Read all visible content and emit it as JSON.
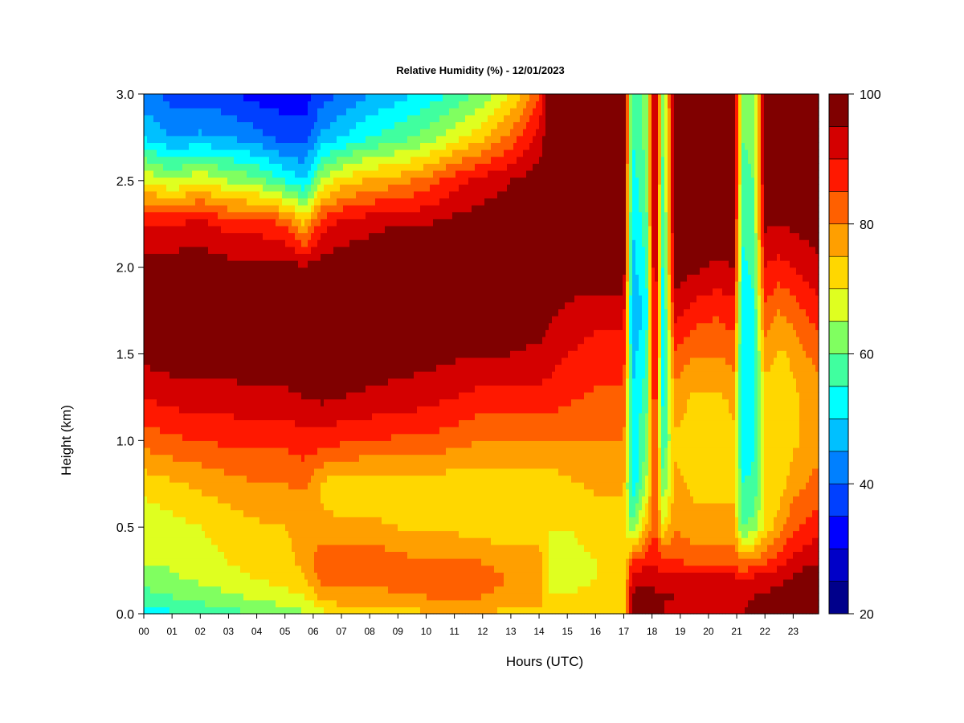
{
  "chart_data": {
    "type": "heatmap",
    "title": "Relative Humidity (%) - 12/01/2023",
    "xlabel": "Hours (UTC)",
    "ylabel": "Height (km)",
    "x_ticks": [
      "00",
      "01",
      "02",
      "03",
      "04",
      "05",
      "06",
      "07",
      "08",
      "09",
      "10",
      "11",
      "12",
      "13",
      "14",
      "15",
      "16",
      "17",
      "18",
      "19",
      "20",
      "21",
      "22",
      "23"
    ],
    "xlim": [
      0,
      23.9
    ],
    "y_ticks": [
      "0.0",
      "0.5",
      "1.0",
      "1.5",
      "2.0",
      "2.5",
      "3.0"
    ],
    "ylim": [
      0,
      3.0
    ],
    "colorbar": {
      "ticks": [
        "20",
        "40",
        "60",
        "80",
        "100"
      ],
      "range": [
        20,
        100
      ],
      "levels": [
        20,
        25,
        30,
        35,
        40,
        45,
        50,
        55,
        60,
        65,
        70,
        75,
        80,
        85,
        90,
        95,
        100
      ],
      "colors": [
        "#00008b",
        "#0000c8",
        "#0000ff",
        "#0040ff",
        "#0080ff",
        "#00c0ff",
        "#00ffff",
        "#40ff9f",
        "#80ff60",
        "#dfff20",
        "#ffd700",
        "#ff9f00",
        "#ff6000",
        "#ff1800",
        "#d40000",
        "#800000"
      ]
    },
    "profiles_height_km": [
      0.0,
      0.1,
      0.2,
      0.3,
      0.5,
      0.75,
      1.0,
      1.25,
      1.5,
      1.75,
      2.0,
      2.25,
      2.5,
      2.75,
      3.0
    ],
    "profiles": [
      {
        "hour": 0.0,
        "rh": [
          52,
          58,
          62,
          65,
          66,
          72,
          82,
          90,
          97,
          99,
          98,
          90,
          70,
          50,
          42
        ]
      },
      {
        "hour": 1.0,
        "rh": [
          54,
          60,
          64,
          66,
          68,
          74,
          84,
          92,
          98,
          99,
          98,
          90,
          65,
          45,
          38
        ]
      },
      {
        "hour": 2.0,
        "rh": [
          56,
          62,
          66,
          68,
          70,
          76,
          85,
          93,
          98,
          99,
          98,
          92,
          70,
          46,
          38
        ]
      },
      {
        "hour": 3.0,
        "rh": [
          58,
          64,
          68,
          70,
          72,
          78,
          86,
          93,
          98,
          99,
          97,
          88,
          65,
          45,
          36
        ]
      },
      {
        "hour": 4.0,
        "rh": [
          60,
          66,
          70,
          72,
          74,
          80,
          86,
          94,
          98,
          99,
          97,
          88,
          62,
          42,
          33
        ]
      },
      {
        "hour": 5.0,
        "rh": [
          62,
          68,
          72,
          74,
          75,
          80,
          86,
          94,
          98,
          99,
          97,
          85,
          55,
          38,
          32
        ]
      },
      {
        "hour": 5.7,
        "rh": [
          64,
          70,
          74,
          76,
          76,
          81,
          88,
          95,
          98,
          99,
          96,
          75,
          50,
          38,
          32
        ]
      },
      {
        "hour": 6.3,
        "rh": [
          68,
          76,
          82,
          84,
          76,
          74,
          88,
          96,
          99,
          99,
          98,
          88,
          66,
          46,
          38
        ]
      },
      {
        "hour": 7.0,
        "rh": [
          72,
          78,
          82,
          84,
          76,
          72,
          86,
          95,
          99,
          99,
          98,
          92,
          72,
          50,
          40
        ]
      },
      {
        "hour": 8.0,
        "rh": [
          72,
          78,
          82,
          84,
          76,
          72,
          85,
          94,
          98,
          99,
          98,
          94,
          76,
          55,
          45
        ]
      },
      {
        "hour": 9.0,
        "rh": [
          73,
          79,
          82,
          82,
          75,
          72,
          84,
          93,
          98,
          99,
          98,
          95,
          78,
          58,
          48
        ]
      },
      {
        "hour": 10.0,
        "rh": [
          74,
          80,
          82,
          80,
          74,
          72,
          84,
          92,
          97,
          99,
          99,
          95,
          82,
          62,
          52
        ]
      },
      {
        "hour": 11.0,
        "rh": [
          74,
          80,
          82,
          80,
          74,
          72,
          82,
          90,
          96,
          99,
          99,
          97,
          88,
          68,
          56
        ]
      },
      {
        "hour": 12.0,
        "rh": [
          74,
          80,
          82,
          80,
          72,
          72,
          80,
          88,
          95,
          98,
          99,
          98,
          92,
          74,
          62
        ]
      },
      {
        "hour": 13.0,
        "rh": [
          74,
          78,
          80,
          78,
          72,
          72,
          80,
          88,
          95,
          98,
          99,
          98,
          95,
          82,
          70
        ]
      },
      {
        "hour": 14.0,
        "rh": [
          74,
          78,
          80,
          78,
          72,
          72,
          80,
          88,
          94,
          98,
          99,
          99,
          98,
          92,
          85
        ]
      },
      {
        "hour": 14.4,
        "rh": [
          70,
          70,
          68,
          68,
          70,
          72,
          80,
          88,
          92,
          96,
          99,
          100,
          100,
          100,
          100
        ]
      },
      {
        "hour": 15.0,
        "rh": [
          70,
          70,
          68,
          68,
          70,
          74,
          80,
          86,
          90,
          94,
          99,
          100,
          100,
          100,
          100
        ]
      },
      {
        "hour": 16.0,
        "rh": [
          72,
          72,
          70,
          70,
          72,
          76,
          80,
          84,
          88,
          92,
          99,
          100,
          100,
          100,
          100
        ]
      },
      {
        "hour": 17.0,
        "rh": [
          72,
          72,
          70,
          70,
          72,
          76,
          80,
          84,
          88,
          92,
          99,
          100,
          100,
          100,
          100
        ]
      },
      {
        "hour": 17.3,
        "rh": [
          95,
          96,
          93,
          86,
          60,
          50,
          50,
          50,
          48,
          44,
          48,
          50,
          52,
          55,
          55
        ]
      },
      {
        "hour": 17.8,
        "rh": [
          96,
          97,
          94,
          88,
          75,
          65,
          60,
          58,
          55,
          52,
          55,
          58,
          60,
          62,
          62
        ]
      },
      {
        "hour": 18.1,
        "rh": [
          96,
          96,
          94,
          90,
          86,
          85,
          88,
          92,
          95,
          97,
          99,
          99,
          99,
          99,
          99
        ]
      },
      {
        "hour": 18.4,
        "rh": [
          95,
          95,
          92,
          86,
          70,
          60,
          55,
          52,
          50,
          50,
          52,
          54,
          56,
          58,
          60
        ]
      },
      {
        "hour": 18.8,
        "rh": [
          94,
          95,
          93,
          86,
          80,
          76,
          74,
          78,
          84,
          92,
          98,
          99,
          99,
          99,
          99
        ]
      },
      {
        "hour": 19.5,
        "rh": [
          94,
          94,
          92,
          84,
          76,
          74,
          72,
          74,
          80,
          88,
          96,
          99,
          99,
          99,
          99
        ]
      },
      {
        "hour": 20.3,
        "rh": [
          94,
          94,
          92,
          84,
          76,
          74,
          72,
          74,
          80,
          86,
          94,
          99,
          99,
          99,
          99
        ]
      },
      {
        "hour": 20.9,
        "rh": [
          94,
          94,
          92,
          84,
          76,
          74,
          74,
          76,
          82,
          88,
          95,
          99,
          99,
          99,
          99
        ]
      },
      {
        "hour": 21.2,
        "rh": [
          95,
          94,
          90,
          80,
          60,
          55,
          52,
          50,
          50,
          52,
          54,
          56,
          58,
          60,
          60
        ]
      },
      {
        "hour": 21.6,
        "rh": [
          96,
          95,
          92,
          82,
          62,
          56,
          54,
          52,
          52,
          54,
          56,
          58,
          60,
          62,
          62
        ]
      },
      {
        "hour": 22.0,
        "rh": [
          98,
          96,
          92,
          84,
          72,
          70,
          70,
          72,
          78,
          84,
          90,
          96,
          99,
          99,
          99
        ]
      },
      {
        "hour": 22.5,
        "rh": [
          98,
          97,
          94,
          88,
          78,
          72,
          70,
          70,
          74,
          80,
          88,
          95,
          98,
          99,
          99
        ]
      },
      {
        "hour": 23.0,
        "rh": [
          99,
          98,
          96,
          92,
          84,
          78,
          74,
          74,
          76,
          82,
          90,
          96,
          99,
          99,
          99
        ]
      },
      {
        "hour": 23.5,
        "rh": [
          99,
          99,
          98,
          94,
          86,
          80,
          76,
          76,
          80,
          86,
          92,
          97,
          99,
          99,
          99
        ]
      },
      {
        "hour": 23.9,
        "rh": [
          99,
          99,
          98,
          95,
          88,
          82,
          78,
          78,
          82,
          88,
          94,
          98,
          99,
          99,
          99
        ]
      }
    ]
  }
}
